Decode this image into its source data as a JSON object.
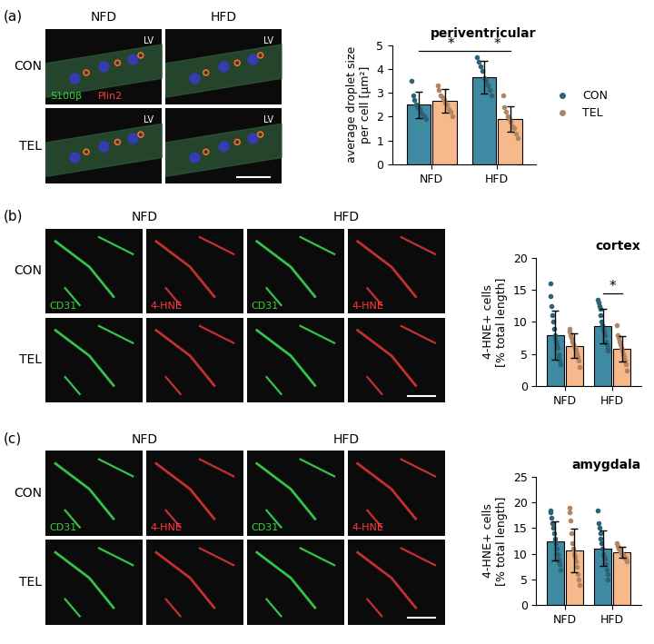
{
  "panel_labels": [
    "(a)",
    "(b)",
    "(c)"
  ],
  "images": [
    {
      "columns": [
        "NFD",
        "HFD"
      ],
      "rows": [
        "CON",
        "TEL"
      ],
      "region_label": "LV",
      "stains": [
        {
          "text": "S100β",
          "color": "#3ccf3c"
        },
        {
          "text": "Plin2",
          "color": "#ff3b3b"
        }
      ]
    },
    {
      "columns": [
        "NFD",
        "HFD"
      ],
      "rows": [
        "CON",
        "TEL"
      ],
      "stains": [
        {
          "text": "CD31",
          "color": "#3ccf3c"
        },
        {
          "text": "4-HNE",
          "color": "#ff3b3b"
        }
      ]
    },
    {
      "columns": [
        "NFD",
        "HFD"
      ],
      "rows": [
        "CON",
        "TEL"
      ],
      "stains": [
        {
          "text": "CD31",
          "color": "#3ccf3c"
        },
        {
          "text": "4-HNE",
          "color": "#ff3b3b"
        }
      ]
    }
  ],
  "chart_data": [
    {
      "type": "bar",
      "title": "periventricular",
      "categories": [
        "NFD",
        "HFD"
      ],
      "y_label": "average droplet size\nper cell [µm²]",
      "ylim": [
        0,
        5
      ],
      "yticks": [
        0,
        1,
        2,
        3,
        4,
        5
      ],
      "legend": "right",
      "series": [
        {
          "name": "CON",
          "color": "#3f8aa3",
          "values": [
            2.5,
            3.65
          ],
          "errors": [
            0.55,
            0.7
          ],
          "points": [
            [
              3.5,
              2.9,
              2.7,
              2.5,
              2.4,
              2.3,
              2.2,
              2.1,
              2.0,
              1.9
            ],
            [
              4.5,
              4.3,
              4.1,
              3.9,
              3.6,
              3.5,
              3.3,
              3.1,
              2.9
            ]
          ]
        },
        {
          "name": "TEL",
          "color": "#f7b98b",
          "values": [
            2.65,
            1.9
          ],
          "errors": [
            0.5,
            0.55
          ],
          "points": [
            [
              3.3,
              3.1,
              2.9,
              2.8,
              2.7,
              2.6,
              2.5,
              2.3,
              2.2,
              2.0
            ],
            [
              2.9,
              2.4,
              2.2,
              2.0,
              1.9,
              1.8,
              1.6,
              1.5,
              1.3,
              1.1
            ]
          ]
        }
      ],
      "significance": [
        {
          "text": "*",
          "between": [
            [
              "CON",
              "NFD"
            ],
            [
              "CON",
              "HFD"
            ]
          ]
        },
        {
          "text": "*",
          "between": [
            [
              "CON",
              "HFD"
            ],
            [
              "TEL",
              "HFD"
            ]
          ]
        }
      ]
    },
    {
      "type": "bar",
      "title": "cortex",
      "categories": [
        "NFD",
        "HFD"
      ],
      "y_label": "4-HNE+ cells\n[% total length]",
      "ylim": [
        0,
        20
      ],
      "yticks": [
        0,
        5,
        10,
        15,
        20
      ],
      "series": [
        {
          "name": "CON",
          "color": "#3f8aa3",
          "values": [
            7.9,
            9.4
          ],
          "errors": [
            3.8,
            2.7
          ],
          "points": [
            [
              16,
              14,
              12.5,
              11,
              10,
              9,
              8,
              7.5,
              7,
              6.5,
              6,
              5,
              4.5,
              4,
              3.5
            ],
            [
              13.5,
              13,
              12.5,
              12,
              11,
              10,
              9.5,
              9,
              8.5,
              8,
              7,
              6.5,
              6,
              5.5
            ]
          ]
        },
        {
          "name": "TEL",
          "color": "#f7b98b",
          "values": [
            6.3,
            5.8
          ],
          "errors": [
            1.9,
            2.0
          ],
          "points": [
            [
              9,
              8.5,
              8,
              7.5,
              7,
              6.5,
              6.2,
              6,
              5.5,
              5,
              4.5,
              4,
              3
            ],
            [
              9.5,
              8,
              7.5,
              7,
              6.5,
              6,
              5.5,
              5,
              4.5,
              4,
              3.5,
              2.5
            ]
          ]
        }
      ],
      "significance": [
        {
          "text": "*",
          "between": [
            [
              "CON",
              "HFD"
            ],
            [
              "TEL",
              "HFD"
            ]
          ]
        }
      ]
    },
    {
      "type": "bar",
      "title": "amygdala",
      "categories": [
        "NFD",
        "HFD"
      ],
      "y_label": "4-HNE+ cells\n[% total length]",
      "ylim": [
        0,
        25
      ],
      "yticks": [
        0,
        5,
        10,
        15,
        20,
        25
      ],
      "series": [
        {
          "name": "CON",
          "color": "#3f8aa3",
          "values": [
            12.5,
            11.1
          ],
          "errors": [
            3.8,
            3.5
          ],
          "points": [
            [
              18.5,
              18,
              17,
              16,
              15,
              14,
              13,
              12.5,
              12,
              11,
              10,
              9,
              8.5,
              8,
              7
            ],
            [
              18.5,
              16,
              15,
              14,
              13,
              12,
              11,
              10,
              9.5,
              9,
              8,
              7,
              6,
              5
            ]
          ]
        },
        {
          "name": "TEL",
          "color": "#f7b98b",
          "values": [
            10.7,
            10.3
          ],
          "errors": [
            4.2,
            1.1
          ],
          "points": [
            [
              19,
              18,
              16.5,
              14,
              12,
              11,
              10,
              9.5,
              8.5,
              7.5,
              6,
              5,
              4
            ],
            [
              12,
              11.5,
              11,
              10.8,
              10.5,
              10.2,
              10,
              9.8,
              9.5,
              9.2,
              9,
              8.5
            ]
          ]
        }
      ]
    }
  ]
}
